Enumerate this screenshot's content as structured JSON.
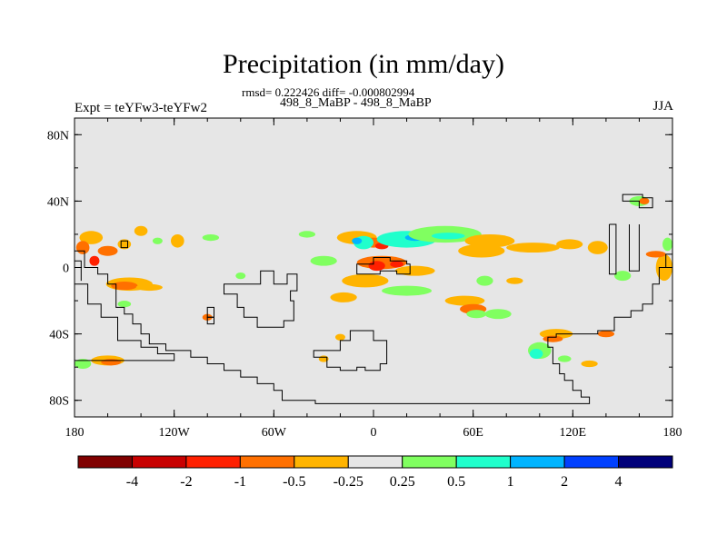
{
  "chart_data": {
    "type": "heatmap",
    "title": "Precipitation (in mm/day)",
    "stats": "rmsd= 0.222426 diff= -0.000802994",
    "period": "498_8_MaBP - 498_8_MaBP",
    "expt_label": "Expt = teYFw3-teYFw2",
    "season": "JJA",
    "x_ticks": [
      "180",
      "120W",
      "60W",
      "0",
      "60E",
      "120E",
      "180"
    ],
    "y_ticks": [
      "80N",
      "40N",
      "0",
      "40S",
      "80S"
    ],
    "xlim": [
      -180,
      180
    ],
    "ylim": [
      -90,
      90
    ],
    "colorbar": {
      "labels": [
        "-4",
        "-2",
        "-1",
        "-0.5",
        "-0.25",
        "0.25",
        "0.5",
        "1",
        "2",
        "4"
      ],
      "colors": [
        "#800000",
        "#c80000",
        "#ff2000",
        "#ff7000",
        "#ffb400",
        "#e6e6e6",
        "#80ff60",
        "#20ffcc",
        "#00b4ff",
        "#0040ff",
        "#00007a"
      ]
    },
    "background_color": "#e6e6e6",
    "blobs": [
      {
        "lon": -170,
        "lat": 18,
        "rx": 7,
        "ry": 4,
        "color": "#ffb400"
      },
      {
        "lon": -160,
        "lat": 10,
        "rx": 6,
        "ry": 3,
        "color": "#ff7000"
      },
      {
        "lon": -150,
        "lat": 14,
        "rx": 4,
        "ry": 3,
        "color": "#ffb400"
      },
      {
        "lon": -140,
        "lat": 22,
        "rx": 4,
        "ry": 3,
        "color": "#ffb400"
      },
      {
        "lon": -118,
        "lat": 16,
        "rx": 4,
        "ry": 4,
        "color": "#ffb400"
      },
      {
        "lon": -98,
        "lat": 18,
        "rx": 5,
        "ry": 2,
        "color": "#80ff60"
      },
      {
        "lon": -147,
        "lat": -10,
        "rx": 14,
        "ry": 4,
        "color": "#ffb400"
      },
      {
        "lon": -150,
        "lat": -11,
        "rx": 8,
        "ry": 2.5,
        "color": "#ff7000"
      },
      {
        "lon": -135,
        "lat": -12,
        "rx": 8,
        "ry": 2,
        "color": "#ffb400"
      },
      {
        "lon": -175,
        "lat": -58,
        "rx": 5,
        "ry": 3,
        "color": "#80ff60"
      },
      {
        "lon": -160,
        "lat": -56,
        "rx": 10,
        "ry": 3,
        "color": "#ffb400"
      },
      {
        "lon": -158,
        "lat": -57,
        "rx": 6,
        "ry": 2,
        "color": "#ff7000"
      },
      {
        "lon": -40,
        "lat": 20,
        "rx": 5,
        "ry": 2,
        "color": "#80ff60"
      },
      {
        "lon": -30,
        "lat": 4,
        "rx": 8,
        "ry": 3,
        "color": "#80ff60"
      },
      {
        "lon": -10,
        "lat": 18,
        "rx": 12,
        "ry": 4,
        "color": "#ffb400"
      },
      {
        "lon": 0,
        "lat": 15,
        "rx": 7,
        "ry": 3,
        "color": "#ff7000"
      },
      {
        "lon": 5,
        "lat": 13,
        "rx": 4,
        "ry": 2,
        "color": "#ff2000"
      },
      {
        "lon": -6,
        "lat": 15,
        "rx": 6,
        "ry": 4,
        "color": "#20ffcc"
      },
      {
        "lon": -10,
        "lat": 16,
        "rx": 3,
        "ry": 2,
        "color": "#00b4ff"
      },
      {
        "lon": 20,
        "lat": 17,
        "rx": 18,
        "ry": 5,
        "color": "#20ffcc"
      },
      {
        "lon": 25,
        "lat": 18,
        "rx": 6,
        "ry": 2,
        "color": "#00b4ff"
      },
      {
        "lon": 43,
        "lat": 20,
        "rx": 22,
        "ry": 5,
        "color": "#80ff60"
      },
      {
        "lon": 45,
        "lat": 19,
        "rx": 10,
        "ry": 2,
        "color": "#20ffcc"
      },
      {
        "lon": 70,
        "lat": 16,
        "rx": 15,
        "ry": 4,
        "color": "#ffb400"
      },
      {
        "lon": 65,
        "lat": 10,
        "rx": 14,
        "ry": 4,
        "color": "#ffb400"
      },
      {
        "lon": 96,
        "lat": 12,
        "rx": 16,
        "ry": 3,
        "color": "#ffb400"
      },
      {
        "lon": 118,
        "lat": 14,
        "rx": 8,
        "ry": 3,
        "color": "#ffb400"
      },
      {
        "lon": 135,
        "lat": 12,
        "rx": 6,
        "ry": 4,
        "color": "#ffb400"
      },
      {
        "lon": 5,
        "lat": 3,
        "rx": 15,
        "ry": 4,
        "color": "#ff7000"
      },
      {
        "lon": 2,
        "lat": 1,
        "rx": 5,
        "ry": 3,
        "color": "#ff2000"
      },
      {
        "lon": 14,
        "lat": 2,
        "rx": 4,
        "ry": 2,
        "color": "#ff2000"
      },
      {
        "lon": -5,
        "lat": -8,
        "rx": 14,
        "ry": 4,
        "color": "#ffb400"
      },
      {
        "lon": 20,
        "lat": -14,
        "rx": 15,
        "ry": 3,
        "color": "#80ff60"
      },
      {
        "lon": 25,
        "lat": -2,
        "rx": 12,
        "ry": 3,
        "color": "#ffb400"
      },
      {
        "lon": -18,
        "lat": -18,
        "rx": 8,
        "ry": 3,
        "color": "#ffb400"
      },
      {
        "lon": 55,
        "lat": -20,
        "rx": 12,
        "ry": 3,
        "color": "#ffb400"
      },
      {
        "lon": 60,
        "lat": -25,
        "rx": 8,
        "ry": 3,
        "color": "#ff7000"
      },
      {
        "lon": 62,
        "lat": -28,
        "rx": 6,
        "ry": 2.5,
        "color": "#80ff60"
      },
      {
        "lon": 75,
        "lat": -28,
        "rx": 8,
        "ry": 3,
        "color": "#80ff60"
      },
      {
        "lon": 67,
        "lat": -8,
        "rx": 5,
        "ry": 3,
        "color": "#80ff60"
      },
      {
        "lon": 85,
        "lat": -8,
        "rx": 5,
        "ry": 2,
        "color": "#ffb400"
      },
      {
        "lon": 110,
        "lat": -40,
        "rx": 10,
        "ry": 3,
        "color": "#ffb400"
      },
      {
        "lon": 108,
        "lat": -43,
        "rx": 6,
        "ry": 2,
        "color": "#ff7000"
      },
      {
        "lon": 100,
        "lat": -50,
        "rx": 7,
        "ry": 5,
        "color": "#80ff60"
      },
      {
        "lon": 98,
        "lat": -52,
        "rx": 4,
        "ry": 3,
        "color": "#20ffcc"
      },
      {
        "lon": 115,
        "lat": -55,
        "rx": 4,
        "ry": 2,
        "color": "#80ff60"
      },
      {
        "lon": 130,
        "lat": -58,
        "rx": 5,
        "ry": 2,
        "color": "#ffb400"
      },
      {
        "lon": 140,
        "lat": -40,
        "rx": 5,
        "ry": 2,
        "color": "#ff7000"
      },
      {
        "lon": 150,
        "lat": -5,
        "rx": 5,
        "ry": 3,
        "color": "#80ff60"
      },
      {
        "lon": 175,
        "lat": 0,
        "rx": 5,
        "ry": 8,
        "color": "#ffb400"
      },
      {
        "lon": 170,
        "lat": 8,
        "rx": 6,
        "ry": 2,
        "color": "#ff7000"
      },
      {
        "lon": 177,
        "lat": 14,
        "rx": 3,
        "ry": 4,
        "color": "#80ff60"
      },
      {
        "lon": 160,
        "lat": 40,
        "rx": 6,
        "ry": 3,
        "color": "#80ff60"
      },
      {
        "lon": 163,
        "lat": 40,
        "rx": 3,
        "ry": 2,
        "color": "#ff7000"
      },
      {
        "lon": -30,
        "lat": -55,
        "rx": 3,
        "ry": 2,
        "color": "#ffb400"
      },
      {
        "lon": -80,
        "lat": -5,
        "rx": 3,
        "ry": 2,
        "color": "#80ff60"
      },
      {
        "lon": -100,
        "lat": -30,
        "rx": 3,
        "ry": 2,
        "color": "#ff7000"
      },
      {
        "lon": -20,
        "lat": -42,
        "rx": 3,
        "ry": 2,
        "color": "#ffb400"
      },
      {
        "lon": -175,
        "lat": 12,
        "rx": 4,
        "ry": 4,
        "color": "#ff7000"
      },
      {
        "lon": -168,
        "lat": 4,
        "rx": 3,
        "ry": 3,
        "color": "#ff2000"
      },
      {
        "lon": -150,
        "lat": -22,
        "rx": 4,
        "ry": 2,
        "color": "#80ff60"
      },
      {
        "lon": -130,
        "lat": 16,
        "rx": 3,
        "ry": 2,
        "color": "#80ff60"
      }
    ],
    "coastlines": [
      {
        "name": "gondwana-west-coast",
        "closed": false,
        "points": [
          [
            -180,
            10
          ],
          [
            -174,
            10
          ],
          [
            -174,
            0
          ],
          [
            -166,
            0
          ],
          [
            -166,
            -4
          ],
          [
            -160,
            -4
          ],
          [
            -160,
            -10
          ],
          [
            -155,
            -10
          ],
          [
            -155,
            -24
          ],
          [
            -150,
            -24
          ],
          [
            -150,
            -28
          ],
          [
            -145,
            -28
          ],
          [
            -145,
            -34
          ],
          [
            -140,
            -34
          ],
          [
            -140,
            -40
          ],
          [
            -135,
            -40
          ],
          [
            -135,
            -46
          ],
          [
            -125,
            -46
          ],
          [
            -125,
            -50
          ],
          [
            -110,
            -50
          ],
          [
            -110,
            -54
          ],
          [
            -100,
            -54
          ],
          [
            -100,
            -58
          ],
          [
            -90,
            -58
          ],
          [
            -90,
            -62
          ],
          [
            -80,
            -62
          ],
          [
            -80,
            -66
          ],
          [
            -70,
            -66
          ],
          [
            -70,
            -70
          ],
          [
            -60,
            -70
          ],
          [
            -60,
            -74
          ],
          [
            -55,
            -74
          ],
          [
            -55,
            -80
          ],
          [
            -35,
            -80
          ],
          [
            -35,
            -82
          ],
          [
            130,
            -82
          ],
          [
            130,
            -78
          ],
          [
            125,
            -78
          ],
          [
            125,
            -74
          ],
          [
            120,
            -74
          ],
          [
            120,
            -68
          ],
          [
            115,
            -68
          ],
          [
            115,
            -64
          ],
          [
            112,
            -64
          ],
          [
            112,
            -58
          ],
          [
            108,
            -58
          ],
          [
            108,
            -48
          ],
          [
            105,
            -48
          ],
          [
            105,
            -42
          ],
          [
            110,
            -42
          ],
          [
            110,
            -40
          ],
          [
            135,
            -40
          ],
          [
            135,
            -38
          ],
          [
            145,
            -38
          ],
          [
            145,
            -30
          ],
          [
            155,
            -30
          ],
          [
            155,
            -26
          ],
          [
            162,
            -26
          ],
          [
            162,
            -22
          ],
          [
            168,
            -22
          ],
          [
            168,
            -10
          ],
          [
            172,
            -10
          ],
          [
            172,
            0
          ],
          [
            176,
            0
          ],
          [
            176,
            8
          ],
          [
            180,
            8
          ]
        ]
      },
      {
        "name": "west-gondwana-island",
        "closed": true,
        "points": [
          [
            -180,
            -10
          ],
          [
            -172,
            -10
          ],
          [
            -172,
            -22
          ],
          [
            -164,
            -22
          ],
          [
            -164,
            -30
          ],
          [
            -154,
            -30
          ],
          [
            -154,
            -44
          ],
          [
            -140,
            -44
          ],
          [
            -140,
            -48
          ],
          [
            -130,
            -48
          ],
          [
            -130,
            -52
          ],
          [
            -120,
            -52
          ],
          [
            -120,
            -56
          ],
          [
            -180,
            -56
          ]
        ]
      },
      {
        "name": "mid-island",
        "closed": true,
        "points": [
          [
            -90,
            -10
          ],
          [
            -68,
            -10
          ],
          [
            -68,
            -2
          ],
          [
            -60,
            -2
          ],
          [
            -60,
            -10
          ],
          [
            -52,
            -10
          ],
          [
            -52,
            -4
          ],
          [
            -46,
            -4
          ],
          [
            -46,
            -14
          ],
          [
            -50,
            -14
          ],
          [
            -50,
            -20
          ],
          [
            -48,
            -20
          ],
          [
            -48,
            -32
          ],
          [
            -54,
            -32
          ],
          [
            -54,
            -36
          ],
          [
            -70,
            -36
          ],
          [
            -70,
            -30
          ],
          [
            -78,
            -30
          ],
          [
            -78,
            -24
          ],
          [
            -82,
            -24
          ],
          [
            -82,
            -16
          ],
          [
            -90,
            -16
          ]
        ]
      },
      {
        "name": "small-island-a",
        "closed": true,
        "points": [
          [
            -100,
            -24
          ],
          [
            -96,
            -24
          ],
          [
            -96,
            -30
          ],
          [
            -100,
            -30
          ]
        ]
      },
      {
        "name": "small-island-b",
        "closed": true,
        "points": [
          [
            -100,
            -30
          ],
          [
            -96,
            -30
          ],
          [
            -96,
            -34
          ],
          [
            -100,
            -34
          ]
        ]
      },
      {
        "name": "equatorial-block",
        "closed": true,
        "points": [
          [
            -10,
            2
          ],
          [
            0,
            2
          ],
          [
            0,
            6
          ],
          [
            10,
            6
          ],
          [
            10,
            4
          ],
          [
            20,
            4
          ],
          [
            20,
            2
          ],
          [
            22,
            2
          ],
          [
            22,
            -4
          ],
          [
            14,
            -4
          ],
          [
            14,
            -2
          ],
          [
            4,
            -2
          ],
          [
            4,
            -4
          ],
          [
            -10,
            -4
          ]
        ]
      },
      {
        "name": "southern-island",
        "closed": true,
        "points": [
          [
            -36,
            -50
          ],
          [
            -36,
            -54
          ],
          [
            -28,
            -54
          ],
          [
            -28,
            -60
          ],
          [
            -20,
            -60
          ],
          [
            -20,
            -62
          ],
          [
            -10,
            -62
          ],
          [
            -10,
            -60
          ],
          [
            -5,
            -60
          ],
          [
            -5,
            -62
          ],
          [
            4,
            -62
          ],
          [
            4,
            -58
          ],
          [
            8,
            -58
          ],
          [
            8,
            -44
          ],
          [
            0,
            -44
          ],
          [
            0,
            -38
          ],
          [
            -14,
            -38
          ],
          [
            -14,
            -44
          ],
          [
            -20,
            -44
          ],
          [
            -20,
            -50
          ]
        ]
      },
      {
        "name": "northeast-island",
        "closed": true,
        "points": [
          [
            150,
            44
          ],
          [
            162,
            44
          ],
          [
            162,
            42
          ],
          [
            168,
            42
          ],
          [
            168,
            36
          ],
          [
            160,
            36
          ],
          [
            160,
            40
          ],
          [
            150,
            40
          ]
        ]
      },
      {
        "name": "east-strip",
        "closed": false,
        "points": [
          [
            142,
            26
          ],
          [
            142,
            -4
          ],
          [
            146,
            -4
          ],
          [
            146,
            26
          ],
          [
            142,
            26
          ]
        ]
      },
      {
        "name": "far-east-strip",
        "closed": false,
        "points": [
          [
            154,
            26
          ],
          [
            154,
            -2
          ],
          [
            160,
            -2
          ],
          [
            160,
            26
          ]
        ]
      },
      {
        "name": "west-small-box",
        "closed": true,
        "points": [
          [
            -152,
            16
          ],
          [
            -148,
            16
          ],
          [
            -148,
            12
          ],
          [
            -152,
            12
          ]
        ]
      },
      {
        "name": "west-strip",
        "closed": false,
        "points": [
          [
            -180,
            4
          ],
          [
            -176,
            4
          ],
          [
            -176,
            -8
          ]
        ]
      }
    ]
  }
}
